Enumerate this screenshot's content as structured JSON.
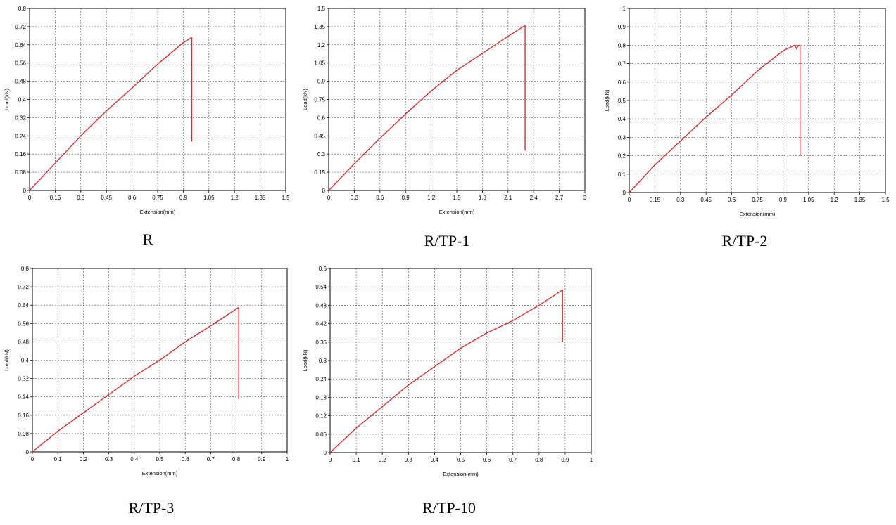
{
  "chart_data": [
    {
      "type": "line",
      "caption": "R",
      "xlabel": "Extension(mm)",
      "ylabel": "Load(kN)",
      "xlim": [
        0,
        1.5
      ],
      "ylim": [
        0,
        0.8
      ],
      "xticks": [
        "0",
        "0.15",
        "0.3",
        "0.45",
        "0.6",
        "0.75",
        "0.9",
        "1.05",
        "1.2",
        "1.35",
        "1.5"
      ],
      "yticks": [
        "0",
        "0.08",
        "0.16",
        "0.24",
        "0.32",
        "0.4",
        "0.48",
        "0.56",
        "0.64",
        "0.72",
        "0.8"
      ],
      "grid": true,
      "line_color": "#cc3333",
      "series": [
        {
          "x": [
            0,
            0.15,
            0.3,
            0.45,
            0.6,
            0.75,
            0.9,
            0.95,
            0.95
          ],
          "y": [
            0,
            0.12,
            0.24,
            0.35,
            0.45,
            0.555,
            0.65,
            0.672,
            0.215
          ]
        }
      ]
    },
    {
      "type": "line",
      "caption": "R/TP-1",
      "xlabel": "Extension(mm)",
      "ylabel": "Load(kN)",
      "xlim": [
        0,
        3
      ],
      "ylim": [
        0,
        1.5
      ],
      "xticks": [
        "0",
        "0.3",
        "0.6",
        "0.9",
        "1.2",
        "1.5",
        "1.8",
        "2.1",
        "2.4",
        "2.7",
        "3"
      ],
      "yticks": [
        "0",
        "0.15",
        "0.3",
        "0.45",
        "0.6",
        "0.75",
        "0.9",
        "1.05",
        "1.2",
        "1.35",
        "1.5"
      ],
      "grid": true,
      "line_color": "#cc3333",
      "series": [
        {
          "x": [
            0,
            0.3,
            0.6,
            0.9,
            1.2,
            1.5,
            1.8,
            2.1,
            2.3,
            2.3
          ],
          "y": [
            0,
            0.22,
            0.43,
            0.63,
            0.82,
            0.99,
            1.13,
            1.27,
            1.36,
            0.33
          ]
        }
      ]
    },
    {
      "type": "line",
      "caption": "R/TP-2",
      "xlabel": "Extension(mm)",
      "ylabel": "Load(kN)",
      "xlim": [
        0,
        1.5
      ],
      "ylim": [
        0,
        1
      ],
      "xticks": [
        "0",
        "0.15",
        "0.3",
        "0.45",
        "0.6",
        "0.75",
        "0.9",
        "1.05",
        "1.2",
        "1.35",
        "1.5"
      ],
      "yticks": [
        "0",
        "0.1",
        "0.2",
        "0.3",
        "0.4",
        "0.5",
        "0.6",
        "0.7",
        "0.8",
        "0.9",
        "1"
      ],
      "grid": true,
      "line_color": "#cc3333",
      "series": [
        {
          "x": [
            0,
            0.15,
            0.3,
            0.45,
            0.6,
            0.75,
            0.9,
            0.97,
            0.98,
            0.99,
            1.0,
            1.0
          ],
          "y": [
            0,
            0.15,
            0.28,
            0.41,
            0.53,
            0.66,
            0.77,
            0.8,
            0.78,
            0.8,
            0.8,
            0.2
          ]
        }
      ]
    },
    {
      "type": "line",
      "caption": "R/TP-3",
      "xlabel": "Extension(mm)",
      "ylabel": "Load(kN)",
      "xlim": [
        0,
        1
      ],
      "ylim": [
        0,
        0.8
      ],
      "xticks": [
        "0",
        "0.1",
        "0.2",
        "0.3",
        "0.4",
        "0.5",
        "0.6",
        "0.7",
        "0.8",
        "0.9",
        "1"
      ],
      "yticks": [
        "0",
        "0.08",
        "0.16",
        "0.24",
        "0.32",
        "0.4",
        "0.48",
        "0.56",
        "0.64",
        "0.72",
        "0.8"
      ],
      "grid": true,
      "line_color": "#cc3333",
      "series": [
        {
          "x": [
            0,
            0.1,
            0.2,
            0.3,
            0.4,
            0.5,
            0.6,
            0.7,
            0.81,
            0.81
          ],
          "y": [
            0,
            0.09,
            0.17,
            0.25,
            0.33,
            0.4,
            0.48,
            0.55,
            0.63,
            0.23
          ]
        }
      ]
    },
    {
      "type": "line",
      "caption": "R/TP-10",
      "xlabel": "Extension(mm)",
      "ylabel": "Load(kN)",
      "xlim": [
        0,
        1
      ],
      "ylim": [
        0,
        0.6
      ],
      "xticks": [
        "0",
        "0.1",
        "0.2",
        "0.3",
        "0.4",
        "0.5",
        "0.6",
        "0.7",
        "0.8",
        "0.9",
        "1"
      ],
      "yticks": [
        "0",
        "0.06",
        "0.12",
        "0.18",
        "0.24",
        "0.3",
        "0.36",
        "0.42",
        "0.48",
        "0.54",
        "0.6"
      ],
      "grid": true,
      "line_color": "#cc3333",
      "series": [
        {
          "x": [
            0,
            0.1,
            0.2,
            0.3,
            0.4,
            0.5,
            0.6,
            0.7,
            0.8,
            0.89,
            0.89
          ],
          "y": [
            0,
            0.08,
            0.15,
            0.22,
            0.28,
            0.34,
            0.39,
            0.43,
            0.48,
            0.53,
            0.36
          ]
        }
      ]
    }
  ]
}
